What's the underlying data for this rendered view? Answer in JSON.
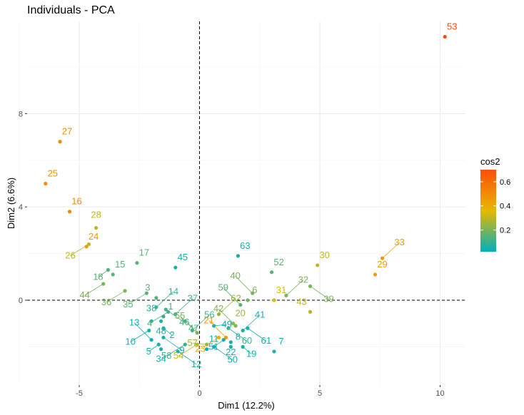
{
  "chart_data": {
    "type": "scatter",
    "title": "Individuals - PCA",
    "xlabel": "Dim1 (12.2%)",
    "ylabel": "Dim2 (6.6%)",
    "xlim": [
      -8.4,
      11.0
    ],
    "ylim": [
      -4.7,
      11.7
    ],
    "x_ticks": [
      -5,
      0,
      5,
      10
    ],
    "y_ticks": [
      0,
      4,
      8
    ],
    "grid": true,
    "reference_lines": {
      "x": 0,
      "y": 0,
      "style": "dashed"
    },
    "legend": {
      "title": "cos2",
      "position": "right",
      "ticks": [
        0.2,
        0.4,
        0.6
      ],
      "range": [
        0.02,
        0.7
      ],
      "colors": [
        "#00AFBB",
        "#E7B800",
        "#FC4E07"
      ]
    },
    "points": [
      {
        "label": "1",
        "x": -1.5,
        "y": -0.7,
        "cos2": 0.1
      },
      {
        "label": "2",
        "x": -1.5,
        "y": -1.2,
        "cos2": 0.05
      },
      {
        "label": "3",
        "x": -1.8,
        "y": 0.1,
        "cos2": 0.15
      },
      {
        "label": "4",
        "x": -1.3,
        "y": -0.5,
        "cos2": 0.12
      },
      {
        "label": "5",
        "x": -1.7,
        "y": -1.9,
        "cos2": 0.05
      },
      {
        "label": "6",
        "x": 2.0,
        "y": 0.0,
        "cos2": 0.2
      },
      {
        "label": "7",
        "x": 3.1,
        "y": -2.2,
        "cos2": 0.05
      },
      {
        "label": "8",
        "x": 1.3,
        "y": -2.0,
        "cos2": 0.05
      },
      {
        "label": "9",
        "x": -1.5,
        "y": -1.6,
        "cos2": 0.05
      },
      {
        "label": "10",
        "x": -2.1,
        "y": -1.3,
        "cos2": 0.05
      },
      {
        "label": "11",
        "x": 0.3,
        "y": -2.1,
        "cos2": 0.02
      },
      {
        "label": "12",
        "x": -0.9,
        "y": -2.2,
        "cos2": 0.05
      },
      {
        "label": "13",
        "x": -2.0,
        "y": -1.7,
        "cos2": 0.03
      },
      {
        "label": "14",
        "x": -1.8,
        "y": -0.3,
        "cos2": 0.1
      },
      {
        "label": "15",
        "x": -3.6,
        "y": 1.1,
        "cos2": 0.15
      },
      {
        "label": "16",
        "x": -5.4,
        "y": 3.8,
        "cos2": 0.5
      },
      {
        "label": "17",
        "x": -2.6,
        "y": 1.6,
        "cos2": 0.15
      },
      {
        "label": "18",
        "x": -3.8,
        "y": 1.3,
        "cos2": 0.15
      },
      {
        "label": "19",
        "x": 1.8,
        "y": -2.0,
        "cos2": 0.05
      },
      {
        "label": "20",
        "x": 1.4,
        "y": -1.0,
        "cos2": 0.25
      },
      {
        "label": "21",
        "x": 1.1,
        "y": -1.6,
        "cos2": 0.45
      },
      {
        "label": "22",
        "x": 1.3,
        "y": -1.8,
        "cos2": 0.05
      },
      {
        "label": "23",
        "x": 0.8,
        "y": -1.6,
        "cos2": 0.4
      },
      {
        "label": "24",
        "x": -4.7,
        "y": 2.3,
        "cos2": 0.45
      },
      {
        "label": "25",
        "x": -6.4,
        "y": 5.0,
        "cos2": 0.5
      },
      {
        "label": "26",
        "x": -4.6,
        "y": 2.4,
        "cos2": 0.3
      },
      {
        "label": "27",
        "x": -5.8,
        "y": 6.8,
        "cos2": 0.5
      },
      {
        "label": "28",
        "x": -4.3,
        "y": 3.1,
        "cos2": 0.3
      },
      {
        "label": "29",
        "x": 7.3,
        "y": 1.1,
        "cos2": 0.45
      },
      {
        "label": "30",
        "x": 4.9,
        "y": 1.5,
        "cos2": 0.3
      },
      {
        "label": "31",
        "x": 3.1,
        "y": 0.0,
        "cos2": 0.35
      },
      {
        "label": "32",
        "x": 3.6,
        "y": 0.2,
        "cos2": 0.2
      },
      {
        "label": "33",
        "x": 7.6,
        "y": 1.8,
        "cos2": 0.45
      },
      {
        "label": "34",
        "x": -1.6,
        "y": -2.1,
        "cos2": 0.05
      },
      {
        "label": "35",
        "x": -2.2,
        "y": 0.3,
        "cos2": 0.15
      },
      {
        "label": "36",
        "x": -3.1,
        "y": 0.4,
        "cos2": 0.2
      },
      {
        "label": "37",
        "x": -1.0,
        "y": -0.6,
        "cos2": 0.12
      },
      {
        "label": "38",
        "x": -2.0,
        "y": -0.9,
        "cos2": 0.08
      },
      {
        "label": "39",
        "x": 4.6,
        "y": 0.6,
        "cos2": 0.2
      },
      {
        "label": "40",
        "x": 2.2,
        "y": 0.3,
        "cos2": 0.2
      },
      {
        "label": "41",
        "x": 1.8,
        "y": -1.3,
        "cos2": 0.05
      },
      {
        "label": "42",
        "x": 1.5,
        "y": -1.1,
        "cos2": 0.2
      },
      {
        "label": "43",
        "x": 4.6,
        "y": -0.5,
        "cos2": 0.3
      },
      {
        "label": "44",
        "x": -4.0,
        "y": 0.7,
        "cos2": 0.2
      },
      {
        "label": "45",
        "x": -1.0,
        "y": 1.4,
        "cos2": 0.05
      },
      {
        "label": "46",
        "x": -1.4,
        "y": -0.4,
        "cos2": 0.12
      },
      {
        "label": "47",
        "x": -0.6,
        "y": -0.9,
        "cos2": 0.1
      },
      {
        "label": "48",
        "x": -1.6,
        "y": -0.9,
        "cos2": 0.07
      },
      {
        "label": "49",
        "x": 0.6,
        "y": -1.1,
        "cos2": 0.03
      },
      {
        "label": "50",
        "x": 0.6,
        "y": -2.0,
        "cos2": 0.03
      },
      {
        "label": "51",
        "x": 1.0,
        "y": -1.7,
        "cos2": 0.05
      },
      {
        "label": "52",
        "x": 3.0,
        "y": 1.2,
        "cos2": 0.15
      },
      {
        "label": "53",
        "x": 10.2,
        "y": 11.3,
        "cos2": 0.7
      },
      {
        "label": "54",
        "x": -0.1,
        "y": -1.9,
        "cos2": 0.3
      },
      {
        "label": "55",
        "x": -0.1,
        "y": -1.4,
        "cos2": 0.2
      },
      {
        "label": "56",
        "x": -0.3,
        "y": -1.3,
        "cos2": 0.12
      },
      {
        "label": "57",
        "x": 0.3,
        "y": -1.9,
        "cos2": 0.25
      },
      {
        "label": "58",
        "x": -0.6,
        "y": -1.9,
        "cos2": 0.1
      },
      {
        "label": "59",
        "x": 1.7,
        "y": -0.2,
        "cos2": 0.15
      },
      {
        "label": "60",
        "x": 1.2,
        "y": -1.2,
        "cos2": 0.1
      },
      {
        "label": "61",
        "x": 2.0,
        "y": -1.2,
        "cos2": 0.05
      },
      {
        "label": "62",
        "x": 0.8,
        "y": -0.6,
        "cos2": 0.25
      },
      {
        "label": "63",
        "x": 1.6,
        "y": 1.9,
        "cos2": 0.05
      }
    ]
  }
}
